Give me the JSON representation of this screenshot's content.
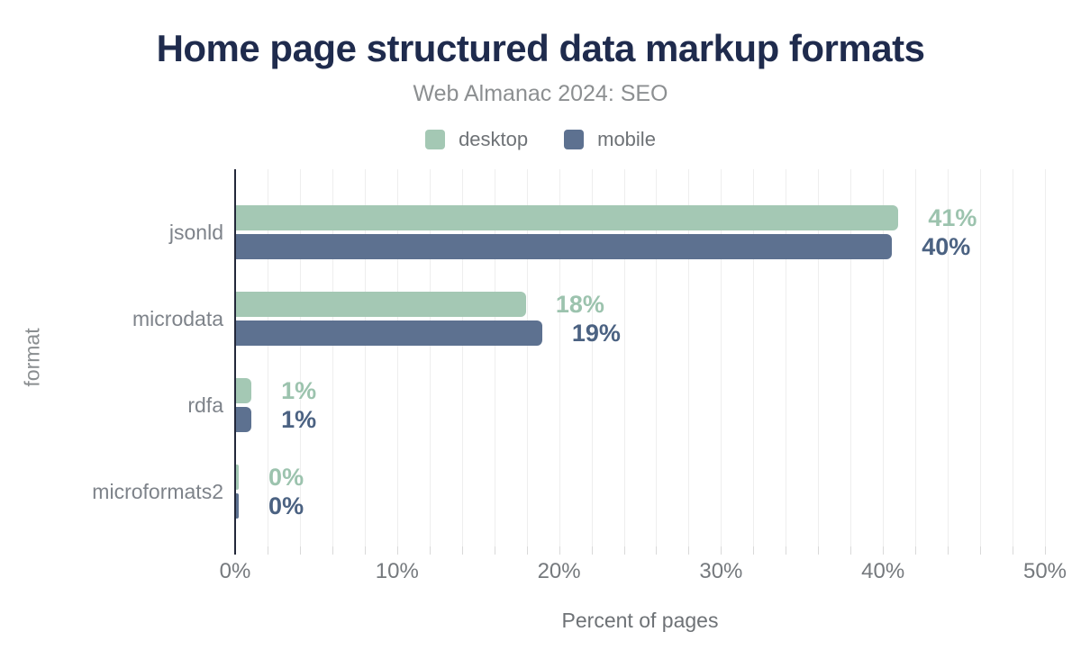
{
  "chart": {
    "title": "Home page structured data markup formats",
    "subtitle": "Web Almanac 2024: SEO"
  },
  "chart_data": {
    "type": "bar",
    "orientation": "horizontal",
    "title": "Home page structured data markup formats",
    "subtitle": "Web Almanac 2024: SEO",
    "xlabel": "Percent of pages",
    "ylabel": "format",
    "categories": [
      "jsonld",
      "microdata",
      "rdfa",
      "microformats2"
    ],
    "series": [
      {
        "name": "desktop",
        "color": "#a4c8b4",
        "label_color": "#9cc3ae",
        "values": [
          41,
          18,
          1,
          0
        ],
        "labels": [
          "41%",
          "18%",
          "1%",
          "0%"
        ],
        "bar_pct": [
          40.9,
          17.9,
          0.95,
          0.17
        ]
      },
      {
        "name": "mobile",
        "color": "#5d7190",
        "label_color": "#4b6282",
        "values": [
          40,
          19,
          1,
          0
        ],
        "labels": [
          "40%",
          "19%",
          "1%",
          "0%"
        ],
        "bar_pct": [
          40.5,
          18.9,
          0.95,
          0.17
        ]
      }
    ],
    "x_axis": {
      "min": 0,
      "max": 50,
      "tick_labels": [
        "0%",
        "10%",
        "20%",
        "30%",
        "40%",
        "50%"
      ],
      "tick_step_pct": 10,
      "gridline_step_pct": 2
    },
    "legend": [
      {
        "label": "desktop",
        "color": "#a4c8b4"
      },
      {
        "label": "mobile",
        "color": "#5d7190"
      }
    ],
    "grid": "vertical-light",
    "legend_position": "top-center"
  }
}
